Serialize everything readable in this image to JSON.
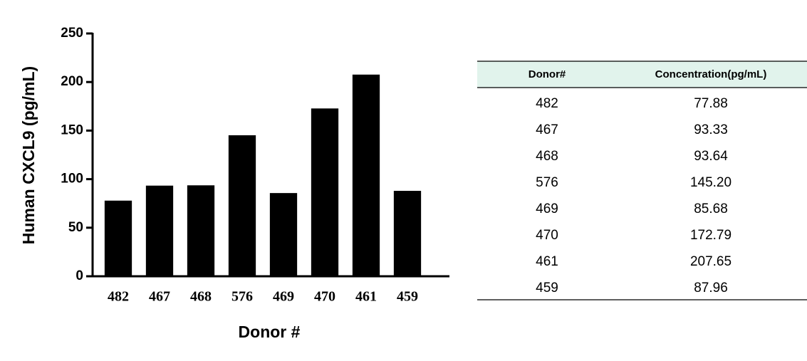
{
  "chart_data": {
    "type": "bar",
    "y_label": "Human CXCL9 (pg/mL)",
    "x_label": "Donor #",
    "categories": [
      "482",
      "467",
      "468",
      "576",
      "469",
      "470",
      "461",
      "459"
    ],
    "values": [
      77.88,
      93.33,
      93.64,
      145.2,
      85.68,
      172.79,
      207.65,
      87.96
    ],
    "color": "#000000",
    "ylim": [
      0,
      250
    ],
    "yticks": [
      0,
      50,
      100,
      150,
      200,
      250
    ]
  },
  "table": {
    "header": [
      "Donor#",
      "Concentration(pg/mL)"
    ],
    "rows": [
      [
        "482",
        "77.88"
      ],
      [
        "467",
        "93.33"
      ],
      [
        "468",
        "93.64"
      ],
      [
        "576",
        "145.20"
      ],
      [
        "469",
        "85.68"
      ],
      [
        "470",
        "172.79"
      ],
      [
        "461",
        "207.65"
      ],
      [
        "459",
        "87.96"
      ]
    ]
  }
}
